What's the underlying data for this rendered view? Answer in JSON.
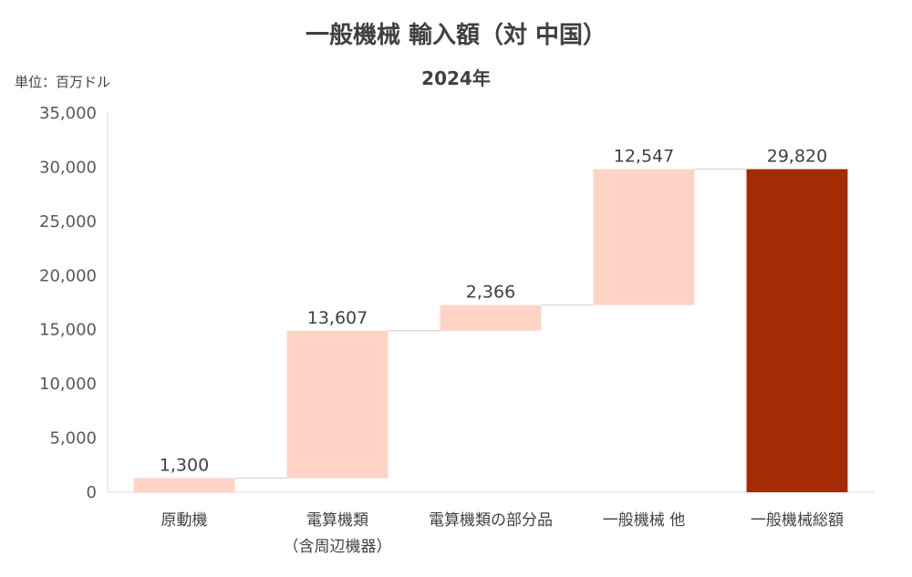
{
  "chart_data": {
    "type": "bar",
    "subtype": "waterfall",
    "title": "一般機械 輸入額（対 中国）",
    "subtitle": "2024年",
    "unit_label": "単位：百万ドル",
    "categories": [
      [
        "原動機"
      ],
      [
        "電算機類",
        "（含周辺機器）"
      ],
      [
        "電算機類の部分品"
      ],
      [
        "一般機械 他"
      ],
      [
        "一般機械総額"
      ]
    ],
    "values": [
      1300,
      13607,
      2366,
      12547,
      29820
    ],
    "value_labels": [
      "1,300",
      "13,607",
      "2,366",
      "12,547",
      "29,820"
    ],
    "is_total": [
      false,
      false,
      false,
      false,
      true
    ],
    "ylim": [
      0,
      35000
    ],
    "yticks": [
      0,
      5000,
      10000,
      15000,
      20000,
      25000,
      30000,
      35000
    ],
    "ytick_labels": [
      "0",
      "5,000",
      "10,000",
      "15,000",
      "20,000",
      "25,000",
      "30,000",
      "35,000"
    ],
    "grid": false,
    "legend": "none",
    "colors": {
      "increment": "#FFD3C6",
      "total": "#A52A06",
      "connector": "#D9D9D9",
      "axis": "#D9D9D9"
    }
  }
}
